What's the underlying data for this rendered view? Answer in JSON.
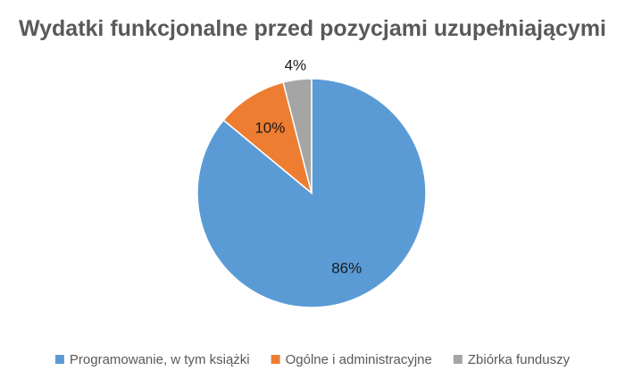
{
  "chart_data": {
    "type": "pie",
    "title": "Wydatki funkcjonalne przed pozycjami uzupełniającymi",
    "categories": [
      "Programowanie, w tym książki",
      "Ogólne i administracyjne",
      "Zbiórka funduszy"
    ],
    "values": [
      86,
      10,
      4
    ],
    "data_labels": [
      "86%",
      "10%",
      "4%"
    ],
    "colors": [
      "#5B9BD5",
      "#ED7D31",
      "#A5A5A5"
    ],
    "legend_position": "bottom",
    "start_angle": "top, clockwise"
  }
}
